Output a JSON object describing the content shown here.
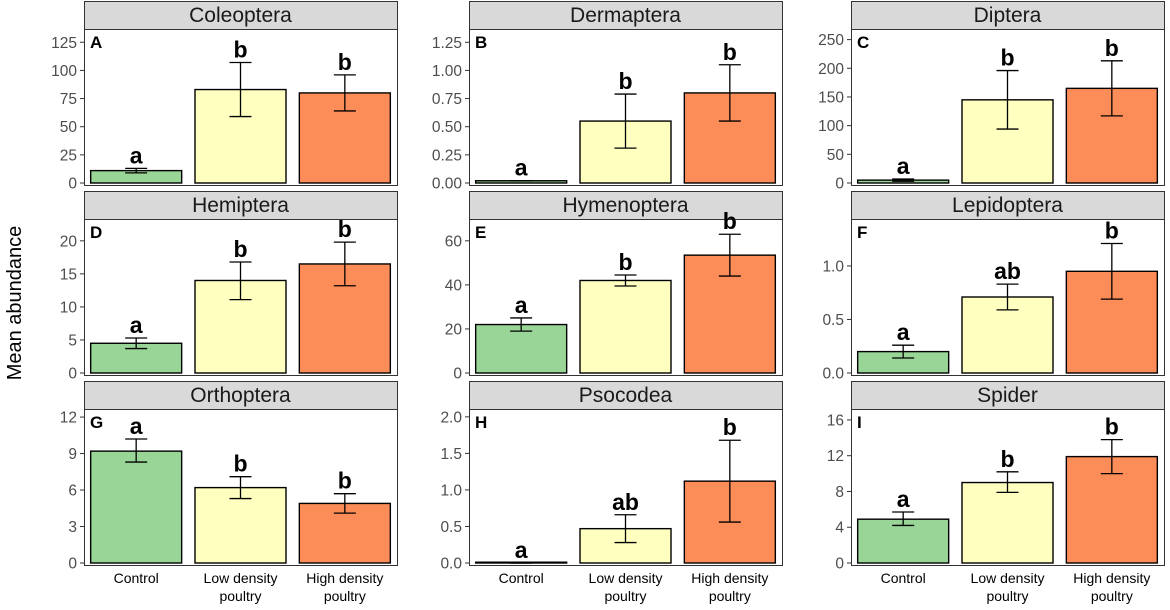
{
  "chart_data": {
    "type": "bar",
    "ylabel": "Mean abundance",
    "categories": [
      {
        "lines": [
          "Control"
        ]
      },
      {
        "lines": [
          "Low density",
          "poultry"
        ]
      },
      {
        "lines": [
          "High density",
          "poultry"
        ]
      }
    ],
    "colors": [
      "#98d596",
      "#ffffc0",
      "#fc8d59"
    ],
    "panels": [
      {
        "title": "Coleoptera",
        "letter": "A",
        "ylim": [
          0,
          135
        ],
        "ticks": [
          0,
          25,
          50,
          75,
          100,
          125
        ],
        "tick_labels": [
          "0",
          "25",
          "50",
          "75",
          "100",
          "125"
        ],
        "values": [
          11,
          83,
          80
        ],
        "err_low": [
          9,
          59,
          64
        ],
        "err_high": [
          13,
          107,
          96
        ],
        "sig": [
          "a",
          "b",
          "b"
        ]
      },
      {
        "title": "Dermaptera",
        "letter": "B",
        "ylim": [
          0,
          1.35
        ],
        "ticks": [
          0,
          0.25,
          0.5,
          0.75,
          1.0,
          1.25
        ],
        "tick_labels": [
          "0.00",
          "0.25",
          "0.50",
          "0.75",
          "1.00",
          "1.25"
        ],
        "values": [
          0.02,
          0.55,
          0.8
        ],
        "err_low": [
          0.02,
          0.31,
          0.55
        ],
        "err_high": [
          0.02,
          0.79,
          1.05
        ],
        "sig": [
          "a",
          "b",
          "b"
        ]
      },
      {
        "title": "Diptera",
        "letter": "C",
        "ylim": [
          0,
          265
        ],
        "ticks": [
          0,
          50,
          100,
          150,
          200,
          250
        ],
        "tick_labels": [
          "0",
          "50",
          "100",
          "150",
          "200",
          "250"
        ],
        "values": [
          5,
          145,
          165
        ],
        "err_low": [
          3,
          94,
          117
        ],
        "err_high": [
          7,
          196,
          213
        ],
        "sig": [
          "a",
          "b",
          "b"
        ]
      },
      {
        "title": "Hemiptera",
        "letter": "D",
        "ylim": [
          0,
          23
        ],
        "ticks": [
          0,
          5,
          10,
          15,
          20
        ],
        "tick_labels": [
          "0",
          "5",
          "10",
          "15",
          "20"
        ],
        "values": [
          4.5,
          14,
          16.5
        ],
        "err_low": [
          3.7,
          11.1,
          13.2
        ],
        "err_high": [
          5.3,
          16.8,
          19.8
        ],
        "sig": [
          "a",
          "b",
          "b"
        ]
      },
      {
        "title": "Hymenoptera",
        "letter": "E",
        "ylim": [
          0,
          69
        ],
        "ticks": [
          0,
          20,
          40,
          60
        ],
        "tick_labels": [
          "0",
          "20",
          "40",
          "60"
        ],
        "values": [
          22,
          42,
          53.5
        ],
        "err_low": [
          19,
          39.5,
          44
        ],
        "err_high": [
          25,
          44.5,
          63
        ],
        "sig": [
          "a",
          "b",
          "b"
        ]
      },
      {
        "title": "Lepidoptera",
        "letter": "F",
        "ylim": [
          0,
          1.42
        ],
        "ticks": [
          0,
          0.5,
          1.0
        ],
        "tick_labels": [
          "0.0",
          "0.5",
          "1.0"
        ],
        "values": [
          0.2,
          0.71,
          0.95
        ],
        "err_low": [
          0.14,
          0.59,
          0.69
        ],
        "err_high": [
          0.26,
          0.83,
          1.21
        ],
        "sig": [
          "a",
          "ab",
          "b"
        ]
      },
      {
        "title": "Orthoptera",
        "letter": "G",
        "ylim": [
          0,
          12.5
        ],
        "ticks": [
          0,
          3,
          6,
          9,
          12
        ],
        "tick_labels": [
          "0",
          "3",
          "6",
          "9",
          "12"
        ],
        "values": [
          9.2,
          6.2,
          4.9
        ],
        "err_low": [
          8.3,
          5.3,
          4.1
        ],
        "err_high": [
          10.2,
          7.1,
          5.7
        ],
        "sig": [
          "a",
          "b",
          "b"
        ]
      },
      {
        "title": "Psocodea",
        "letter": "H",
        "ylim": [
          0,
          2.08
        ],
        "ticks": [
          0,
          0.5,
          1.0,
          1.5,
          2.0
        ],
        "tick_labels": [
          "0.0",
          "0.5",
          "1.0",
          "1.5",
          "2.0"
        ],
        "values": [
          0.0,
          0.47,
          1.12
        ],
        "err_low": [
          0.0,
          0.28,
          0.56
        ],
        "err_high": [
          0.0,
          0.66,
          1.68
        ],
        "sig": [
          "a",
          "ab",
          "b"
        ]
      },
      {
        "title": "Spider",
        "letter": "I",
        "ylim": [
          0,
          17
        ],
        "ticks": [
          0,
          4,
          8,
          12,
          16
        ],
        "tick_labels": [
          "0",
          "4",
          "8",
          "12",
          "16"
        ],
        "values": [
          4.9,
          9.0,
          11.9
        ],
        "err_low": [
          4.2,
          7.9,
          10.0
        ],
        "err_high": [
          5.7,
          10.2,
          13.8
        ],
        "sig": [
          "a",
          "b",
          "b"
        ]
      }
    ]
  }
}
